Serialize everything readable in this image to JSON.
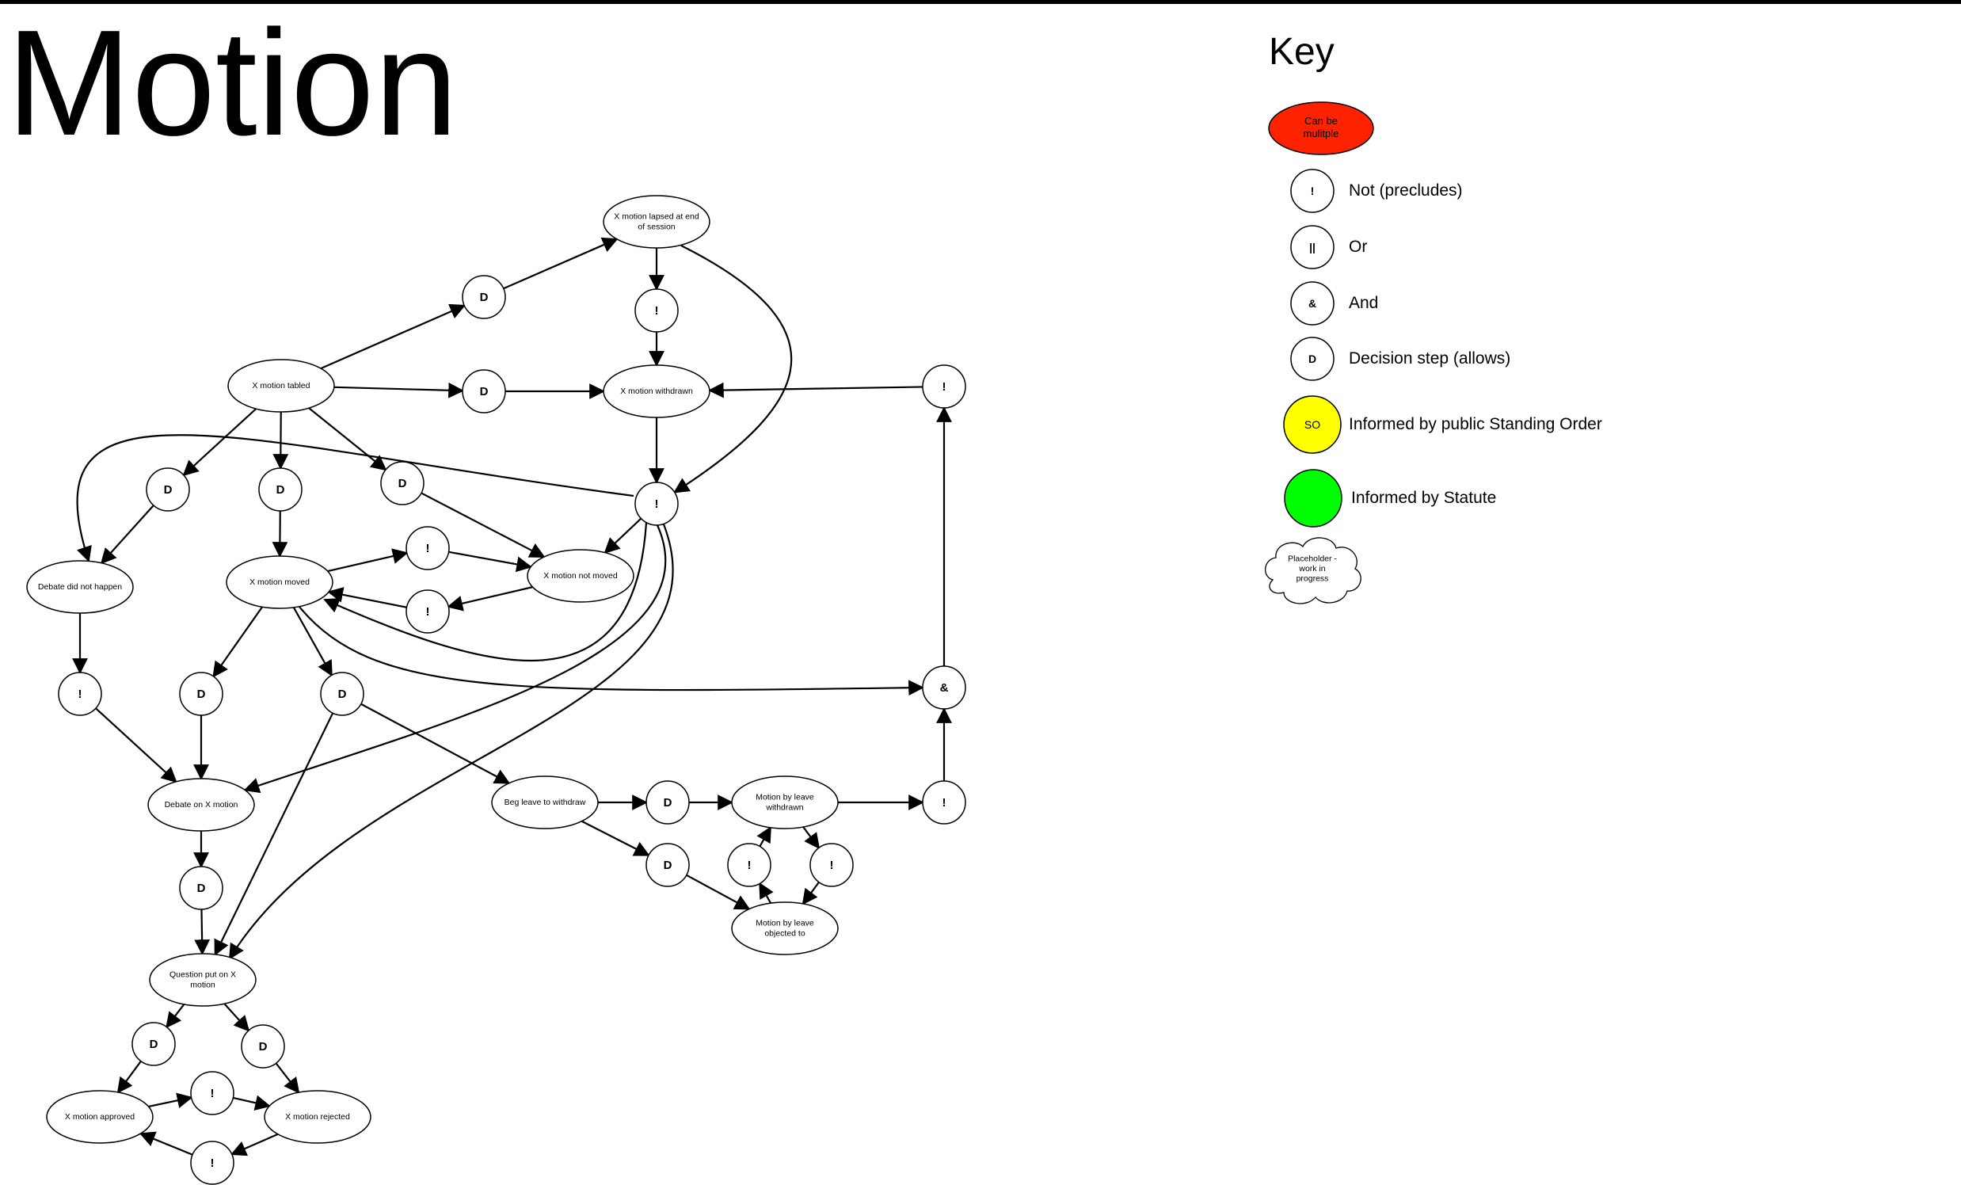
{
  "page": {
    "title": "Motion"
  },
  "key": {
    "title": "Key",
    "items": [
      {
        "symbol": "Can be mulitple",
        "label": "",
        "fill": "#ff2200"
      },
      {
        "symbol": "!",
        "label": "Not (precludes)",
        "fill": "#ffffff"
      },
      {
        "symbol": "||",
        "label": "Or",
        "fill": "#ffffff"
      },
      {
        "symbol": "&",
        "label": "And",
        "fill": "#ffffff"
      },
      {
        "symbol": "D",
        "label": "Decision step (allows)",
        "fill": "#ffffff"
      },
      {
        "symbol": "SO",
        "label": "Informed by public Standing Order",
        "fill": "#ffff00"
      },
      {
        "symbol": "",
        "label": "Informed by Statute",
        "fill": "#00ff00"
      },
      {
        "symbol": "Placeholder - work in progress",
        "label": "",
        "fill": "#ffffff"
      }
    ]
  },
  "diagram": {
    "nodes": [
      {
        "id": "lapsed",
        "label": "X motion  lapsed at end of session"
      },
      {
        "id": "tabled",
        "label": "X motion tabled"
      },
      {
        "id": "withdrawn",
        "label": "X motion  withdrawn"
      },
      {
        "id": "not_happen",
        "label": "Debate did not happen"
      },
      {
        "id": "moved",
        "label": "X motion moved"
      },
      {
        "id": "not_moved",
        "label": "X motion not moved"
      },
      {
        "id": "debate",
        "label": "Debate on X motion"
      },
      {
        "id": "beg_leave",
        "label": "Beg leave to withdraw"
      },
      {
        "id": "leave_withdrawn",
        "label": "Motion by leave withdrawn"
      },
      {
        "id": "leave_objected",
        "label": "Motion by leave objected to"
      },
      {
        "id": "question",
        "label": "Question put on X motion"
      },
      {
        "id": "approved",
        "label": "X motion approved"
      },
      {
        "id": "rejected",
        "label": "X motion rejected"
      }
    ],
    "operators": [
      {
        "id": "d_lapse",
        "symbol": "D"
      },
      {
        "id": "not_lapsed",
        "symbol": "!"
      },
      {
        "id": "d_withdraw",
        "symbol": "D"
      },
      {
        "id": "not_right_top",
        "symbol": "!"
      },
      {
        "id": "not_center",
        "symbol": "!"
      },
      {
        "id": "d_not_happen",
        "symbol": "D"
      },
      {
        "id": "d_moved",
        "symbol": "D"
      },
      {
        "id": "d_not_moved",
        "symbol": "D"
      },
      {
        "id": "not_mm_1",
        "symbol": "!"
      },
      {
        "id": "not_mm_2",
        "symbol": "!"
      },
      {
        "id": "not_left",
        "symbol": "!"
      },
      {
        "id": "d_debate",
        "symbol": "D"
      },
      {
        "id": "d_beg",
        "symbol": "D"
      },
      {
        "id": "and_right",
        "symbol": "&"
      },
      {
        "id": "d_leave_w",
        "symbol": "D"
      },
      {
        "id": "not_right_mid",
        "symbol": "!"
      },
      {
        "id": "d_leave_o",
        "symbol": "D"
      },
      {
        "id": "not_lw_1",
        "symbol": "!"
      },
      {
        "id": "not_lw_2",
        "symbol": "!"
      },
      {
        "id": "d_question",
        "symbol": "D"
      },
      {
        "id": "d_approve",
        "symbol": "D"
      },
      {
        "id": "d_reject",
        "symbol": "D"
      },
      {
        "id": "not_ar_1",
        "symbol": "!"
      },
      {
        "id": "not_ar_2",
        "symbol": "!"
      }
    ],
    "edges": [
      [
        "tabled",
        "d_lapse"
      ],
      [
        "d_lapse",
        "lapsed"
      ],
      [
        "lapsed",
        "not_lapsed"
      ],
      [
        "not_lapsed",
        "withdrawn"
      ],
      [
        "lapsed",
        "not_center"
      ],
      [
        "tabled",
        "d_withdraw"
      ],
      [
        "d_withdraw",
        "withdrawn"
      ],
      [
        "not_right_top",
        "withdrawn"
      ],
      [
        "withdrawn",
        "not_center"
      ],
      [
        "tabled",
        "d_not_happen"
      ],
      [
        "tabled",
        "d_moved"
      ],
      [
        "tabled",
        "d_not_moved"
      ],
      [
        "not_center",
        "not_happen"
      ],
      [
        "d_not_happen",
        "not_happen"
      ],
      [
        "d_moved",
        "moved"
      ],
      [
        "d_not_moved",
        "not_moved"
      ],
      [
        "not_center",
        "not_moved"
      ],
      [
        "moved",
        "not_mm_1"
      ],
      [
        "not_mm_1",
        "not_moved"
      ],
      [
        "not_moved",
        "not_mm_2"
      ],
      [
        "not_mm_2",
        "moved"
      ],
      [
        "not_center",
        "moved"
      ],
      [
        "moved",
        "and_right"
      ],
      [
        "not_happen",
        "not_left"
      ],
      [
        "not_left",
        "debate"
      ],
      [
        "moved",
        "d_debate"
      ],
      [
        "d_debate",
        "debate"
      ],
      [
        "moved",
        "d_beg"
      ],
      [
        "d_beg",
        "question"
      ],
      [
        "d_beg",
        "beg_leave"
      ],
      [
        "not_center",
        "debate"
      ],
      [
        "not_center",
        "question"
      ],
      [
        "debate",
        "d_question"
      ],
      [
        "d_question",
        "question"
      ],
      [
        "beg_leave",
        "d_leave_w"
      ],
      [
        "d_leave_w",
        "leave_withdrawn"
      ],
      [
        "leave_withdrawn",
        "not_right_mid"
      ],
      [
        "not_right_mid",
        "and_right"
      ],
      [
        "and_right",
        "not_right_top"
      ],
      [
        "beg_leave",
        "d_leave_o"
      ],
      [
        "d_leave_o",
        "leave_objected"
      ],
      [
        "leave_objected",
        "not_lw_1"
      ],
      [
        "not_lw_1",
        "leave_withdrawn"
      ],
      [
        "leave_withdrawn",
        "not_lw_2"
      ],
      [
        "not_lw_2",
        "leave_objected"
      ],
      [
        "question",
        "d_approve"
      ],
      [
        "question",
        "d_reject"
      ],
      [
        "d_approve",
        "approved"
      ],
      [
        "d_reject",
        "rejected"
      ],
      [
        "approved",
        "not_ar_1"
      ],
      [
        "not_ar_1",
        "rejected"
      ],
      [
        "rejected",
        "not_ar_2"
      ],
      [
        "not_ar_2",
        "approved"
      ]
    ]
  }
}
